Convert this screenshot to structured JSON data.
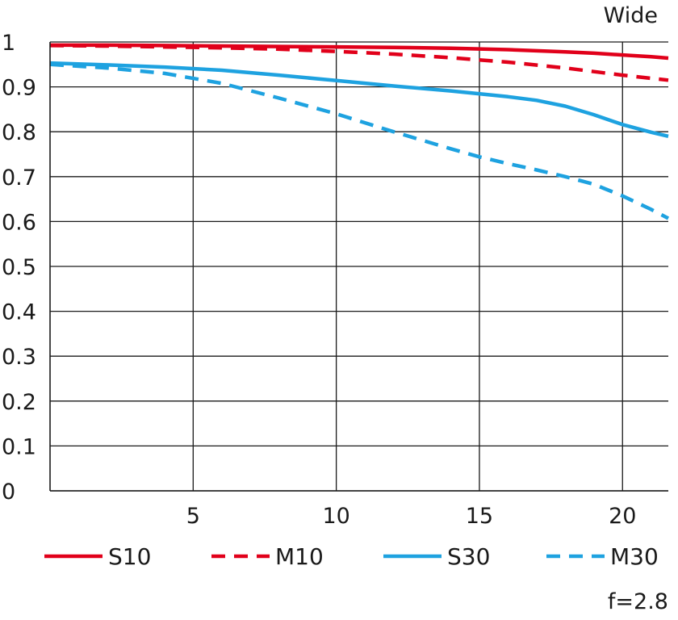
{
  "chart_data": {
    "type": "line",
    "title": "Wide",
    "footnote": "f=2.8",
    "xlabel": "",
    "ylabel": "",
    "xlim": [
      0,
      21.6
    ],
    "ylim": [
      0,
      1
    ],
    "x_ticks": [
      5,
      10,
      15,
      20
    ],
    "x_tick_labels": [
      "5",
      "10",
      "15",
      "20"
    ],
    "y_ticks": [
      0,
      0.1,
      0.2,
      0.3,
      0.4,
      0.5,
      0.6,
      0.7,
      0.8,
      0.9,
      1
    ],
    "y_tick_labels": [
      "0",
      "0.1",
      "0.2",
      "0.3",
      "0.4",
      "0.5",
      "0.6",
      "0.7",
      "0.8",
      "0.9",
      "1"
    ],
    "grid": true,
    "legend_position": "bottom",
    "series": [
      {
        "name": "S10",
        "color": "#e1001a",
        "dashed": false,
        "x": [
          0,
          2,
          4,
          6,
          8,
          10,
          12,
          14,
          16,
          18,
          19,
          20,
          21,
          21.6
        ],
        "y": [
          0.993,
          0.993,
          0.992,
          0.991,
          0.99,
          0.989,
          0.988,
          0.986,
          0.983,
          0.978,
          0.975,
          0.971,
          0.967,
          0.964
        ]
      },
      {
        "name": "M10",
        "color": "#e1001a",
        "dashed": true,
        "x": [
          0,
          2,
          4,
          6,
          8,
          10,
          12,
          14,
          16,
          18,
          19,
          20,
          21,
          21.6
        ],
        "y": [
          0.992,
          0.991,
          0.989,
          0.987,
          0.984,
          0.979,
          0.973,
          0.965,
          0.955,
          0.942,
          0.934,
          0.926,
          0.919,
          0.915
        ]
      },
      {
        "name": "S30",
        "color": "#1ea2e0",
        "dashed": false,
        "x": [
          0,
          2,
          4,
          6,
          8,
          10,
          12,
          14,
          16,
          17,
          18,
          19,
          20,
          21,
          21.6
        ],
        "y": [
          0.953,
          0.949,
          0.944,
          0.937,
          0.926,
          0.914,
          0.902,
          0.891,
          0.878,
          0.87,
          0.857,
          0.838,
          0.816,
          0.799,
          0.79
        ]
      },
      {
        "name": "M30",
        "color": "#1ea2e0",
        "dashed": true,
        "x": [
          0,
          2,
          4,
          6,
          8,
          10,
          12,
          14,
          15,
          16,
          17,
          18,
          19,
          20,
          21,
          21.6
        ],
        "y": [
          0.95,
          0.942,
          0.93,
          0.908,
          0.875,
          0.84,
          0.8,
          0.762,
          0.744,
          0.729,
          0.715,
          0.7,
          0.683,
          0.657,
          0.627,
          0.607
        ]
      }
    ]
  }
}
